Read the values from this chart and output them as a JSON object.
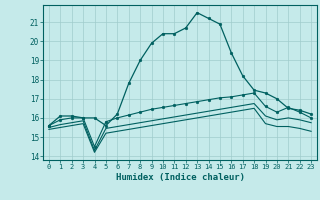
{
  "xlabel": "Humidex (Indice chaleur)",
  "background_color": "#c5eaea",
  "grid_color": "#a0cccc",
  "line_color": "#006060",
  "spine_color": "#006060",
  "xlim": [
    -0.5,
    23.5
  ],
  "ylim": [
    13.8,
    21.9
  ],
  "yticks": [
    14,
    15,
    16,
    17,
    18,
    19,
    20,
    21
  ],
  "xticks": [
    0,
    1,
    2,
    3,
    4,
    5,
    6,
    7,
    8,
    9,
    10,
    11,
    12,
    13,
    14,
    15,
    16,
    17,
    18,
    19,
    20,
    21,
    22,
    23
  ],
  "curve1_x": [
    0,
    1,
    2,
    3,
    4,
    5,
    6,
    7,
    8,
    9,
    10,
    11,
    12,
    13,
    14,
    15,
    16,
    17,
    18,
    19,
    20,
    21,
    22,
    23
  ],
  "curve1_y": [
    15.6,
    16.1,
    16.1,
    16.0,
    16.0,
    15.6,
    16.2,
    17.8,
    19.0,
    19.9,
    20.4,
    20.4,
    20.7,
    21.5,
    21.2,
    20.9,
    19.4,
    18.2,
    17.45,
    17.3,
    17.0,
    16.5,
    16.4,
    16.2
  ],
  "curve2_x": [
    0,
    1,
    2,
    3,
    4,
    5,
    6,
    7,
    8,
    9,
    10,
    11,
    12,
    13,
    14,
    15,
    16,
    17,
    18,
    19,
    20,
    21,
    22,
    23
  ],
  "curve2_y": [
    15.6,
    15.9,
    16.0,
    16.0,
    14.5,
    15.8,
    16.0,
    16.15,
    16.3,
    16.45,
    16.55,
    16.65,
    16.75,
    16.85,
    16.95,
    17.05,
    17.1,
    17.2,
    17.3,
    16.6,
    16.3,
    16.55,
    16.3,
    16.0
  ],
  "curve3_x": [
    0,
    1,
    2,
    3,
    4,
    5,
    6,
    7,
    8,
    9,
    10,
    11,
    12,
    13,
    14,
    15,
    16,
    17,
    18,
    19,
    20,
    21,
    22,
    23
  ],
  "curve3_y": [
    15.5,
    15.65,
    15.75,
    15.85,
    14.3,
    15.45,
    15.55,
    15.65,
    15.75,
    15.85,
    15.95,
    16.05,
    16.15,
    16.25,
    16.35,
    16.45,
    16.55,
    16.65,
    16.75,
    16.1,
    15.9,
    16.0,
    15.9,
    15.75
  ],
  "curve4_x": [
    0,
    1,
    2,
    3,
    4,
    5,
    6,
    7,
    8,
    9,
    10,
    11,
    12,
    13,
    14,
    15,
    16,
    17,
    18,
    19,
    20,
    21,
    22,
    23
  ],
  "curve4_y": [
    15.4,
    15.5,
    15.6,
    15.7,
    14.2,
    15.2,
    15.3,
    15.4,
    15.5,
    15.6,
    15.7,
    15.8,
    15.9,
    16.0,
    16.1,
    16.2,
    16.3,
    16.4,
    16.5,
    15.7,
    15.55,
    15.55,
    15.45,
    15.3
  ]
}
